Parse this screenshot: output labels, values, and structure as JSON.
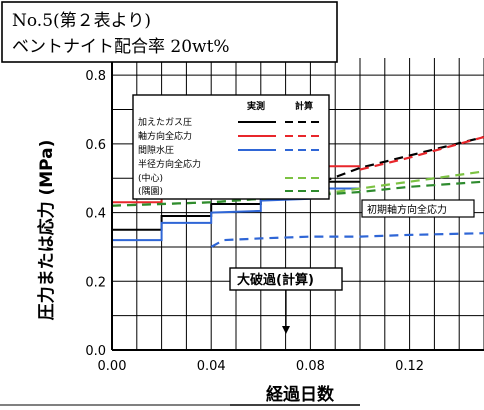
{
  "header_box": {
    "line1": "No.5(第２表より)",
    "line2": "ベントナイト配合率 20wt%"
  },
  "chart_data": {
    "type": "line",
    "xlabel": "経過日数",
    "ylabel": "圧力または応力 (MPa)",
    "xlim": [
      0.0,
      0.15
    ],
    "ylim": [
      0.0,
      0.85
    ],
    "x_ticks": [
      0.0,
      0.04,
      0.08,
      0.12
    ],
    "x_tick_labels": [
      "0.00",
      "0.04",
      "0.08",
      "0.12"
    ],
    "y_ticks": [
      0.0,
      0.2,
      0.4,
      0.6,
      0.8
    ],
    "y_tick_labels": [
      "0.0",
      "0.2",
      "0.4",
      "0.6",
      "0.8"
    ],
    "grid": true,
    "legend": {
      "placement": "top-left",
      "col_headers": [
        "実測",
        "計算"
      ],
      "rows": [
        {
          "label": "加えたガス圧",
          "color": "#000000"
        },
        {
          "label": "軸方向全応力",
          "color": "#e8262b"
        },
        {
          "label": "間隙水圧",
          "color": "#2f66d6"
        },
        {
          "label": "半径方向全応力",
          "color": null
        },
        {
          "label": "(中心)",
          "color": "#7cc242"
        },
        {
          "label": "(隅園)",
          "color": "#2e8b2e"
        }
      ]
    },
    "annotations": [
      {
        "text": "初期軸方向全応力",
        "x": 0.098,
        "y": 0.4
      },
      {
        "text": "大破過(計算)",
        "x": 0.068,
        "y": 0.18
      }
    ],
    "series": [
      {
        "name": "加えたガス圧",
        "kind": "measured",
        "color": "#000000",
        "x": [
          0.0,
          0.02,
          0.02,
          0.04,
          0.04,
          0.06,
          0.06,
          0.08,
          0.08,
          0.1
        ],
        "y": [
          0.35,
          0.35,
          0.39,
          0.39,
          0.425,
          0.425,
          0.46,
          0.46,
          0.49,
          0.49
        ]
      },
      {
        "name": "加えたガス圧",
        "kind": "calculated",
        "color": "#000000",
        "x": [
          0.085,
          0.1,
          0.15
        ],
        "y": [
          0.49,
          0.53,
          0.62
        ]
      },
      {
        "name": "軸方向全応力",
        "kind": "measured",
        "color": "#e8262b",
        "x": [
          0.0,
          0.02,
          0.02,
          0.04,
          0.04,
          0.06,
          0.06,
          0.08,
          0.08,
          0.1
        ],
        "y": [
          0.43,
          0.43,
          0.455,
          0.46,
          0.48,
          0.485,
          0.51,
          0.515,
          0.535,
          0.535
        ]
      },
      {
        "name": "軸方向全応力",
        "kind": "calculated",
        "color": "#e8262b",
        "x": [
          0.1,
          0.12,
          0.15
        ],
        "y": [
          0.525,
          0.56,
          0.62
        ]
      },
      {
        "name": "間隙水圧",
        "kind": "measured",
        "color": "#2f66d6",
        "x": [
          0.0,
          0.02,
          0.02,
          0.04,
          0.04,
          0.06,
          0.06,
          0.08,
          0.08,
          0.1
        ],
        "y": [
          0.32,
          0.32,
          0.37,
          0.37,
          0.4,
          0.405,
          0.435,
          0.44,
          0.47,
          0.47
        ]
      },
      {
        "name": "間隙水圧",
        "kind": "calculated",
        "color": "#2f66d6",
        "x": [
          0.04,
          0.045,
          0.06,
          0.08,
          0.1,
          0.12,
          0.15
        ],
        "y": [
          0.3,
          0.32,
          0.325,
          0.33,
          0.33,
          0.335,
          0.34
        ]
      },
      {
        "name": "(中心)",
        "kind": "calculated",
        "color": "#7cc242",
        "x": [
          0.0,
          0.02,
          0.04,
          0.06,
          0.08,
          0.1,
          0.12,
          0.15
        ],
        "y": [
          0.42,
          0.425,
          0.43,
          0.44,
          0.45,
          0.47,
          0.49,
          0.52
        ]
      },
      {
        "name": "(隅園)",
        "kind": "calculated",
        "color": "#2e8b2e",
        "x": [
          0.0,
          0.02,
          0.04,
          0.06,
          0.08,
          0.1,
          0.12,
          0.15
        ],
        "y": [
          0.42,
          0.425,
          0.43,
          0.44,
          0.45,
          0.46,
          0.475,
          0.49
        ]
      }
    ]
  }
}
